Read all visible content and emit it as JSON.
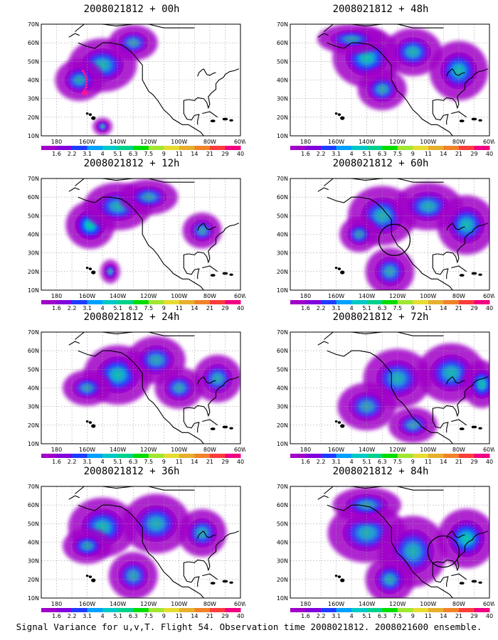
{
  "colorbar": {
    "labels": [
      "1.6",
      "2.2",
      "3.1",
      "4",
      "5.1",
      "6.3",
      "7.5",
      "9",
      "11",
      "14",
      "21",
      "29",
      "40"
    ],
    "colors": [
      "#a000c8",
      "#8200dc",
      "#1e3cff",
      "#00a0ff",
      "#00c8c8",
      "#00d28c",
      "#00dc00",
      "#a0e632",
      "#e6dc32",
      "#e6af2d",
      "#f08228",
      "#fa3c3c",
      "#f00082"
    ]
  },
  "axes": {
    "y_labels": [
      "70N",
      "60N",
      "50N",
      "40N",
      "30N",
      "20N",
      "10N"
    ],
    "x_labels": [
      "180",
      "160W",
      "140W",
      "120W",
      "100W",
      "80W",
      "60W"
    ]
  },
  "panels": [
    {
      "title": "2008021812 + 00h",
      "col": 0,
      "row": 0,
      "blobs": [
        [
          -150,
          48,
          14,
          9,
          0.65
        ],
        [
          -165,
          40,
          10,
          7,
          0.5
        ],
        [
          -130,
          60,
          10,
          6,
          0.3
        ],
        [
          -150,
          15,
          4,
          3,
          0.2
        ]
      ],
      "track": true,
      "circle": null
    },
    {
      "title": "2008021812 + 48h",
      "col": 1,
      "row": 0,
      "blobs": [
        [
          -140,
          52,
          14,
          10,
          0.8
        ],
        [
          -110,
          55,
          12,
          8,
          0.6
        ],
        [
          -80,
          45,
          12,
          10,
          0.75
        ],
        [
          -130,
          35,
          10,
          7,
          0.45
        ],
        [
          -150,
          62,
          14,
          5,
          0.4
        ]
      ],
      "track": false,
      "circle": null
    },
    {
      "title": "2008021812 + 12h",
      "col": 0,
      "row": 1,
      "blobs": [
        [
          -158,
          45,
          10,
          8,
          0.95
        ],
        [
          -140,
          55,
          14,
          8,
          0.55
        ],
        [
          -120,
          60,
          12,
          6,
          0.4
        ],
        [
          -85,
          42,
          8,
          6,
          0.3
        ],
        [
          -145,
          20,
          4,
          4,
          0.2
        ]
      ],
      "track": false,
      "circle": null
    },
    {
      "title": "2008021812 + 60h",
      "col": 1,
      "row": 1,
      "blobs": [
        [
          -130,
          50,
          14,
          10,
          0.6
        ],
        [
          -100,
          55,
          14,
          8,
          0.55
        ],
        [
          -75,
          45,
          12,
          10,
          0.7
        ],
        [
          -125,
          20,
          10,
          8,
          0.45
        ],
        [
          -145,
          40,
          8,
          6,
          0.35
        ]
      ],
      "track": false,
      "circle": [
        -122,
        37
      ]
    },
    {
      "title": "2008021812 + 24h",
      "col": 0,
      "row": 2,
      "blobs": [
        [
          -140,
          47,
          14,
          10,
          0.75
        ],
        [
          -115,
          55,
          12,
          8,
          0.45
        ],
        [
          -100,
          40,
          10,
          7,
          0.4
        ],
        [
          -75,
          45,
          10,
          8,
          0.45
        ],
        [
          -160,
          40,
          10,
          6,
          0.35
        ]
      ],
      "track": false,
      "circle": null
    },
    {
      "title": "2008021812 + 72h",
      "col": 1,
      "row": 2,
      "blobs": [
        [
          -120,
          45,
          14,
          10,
          0.6
        ],
        [
          -85,
          48,
          14,
          10,
          0.65
        ],
        [
          -65,
          42,
          8,
          8,
          0.75
        ],
        [
          -140,
          30,
          12,
          8,
          0.4
        ],
        [
          -110,
          20,
          10,
          6,
          0.35
        ]
      ],
      "track": false,
      "circle": null
    },
    {
      "title": "2008021812 + 36h",
      "col": 0,
      "row": 3,
      "blobs": [
        [
          -150,
          48,
          14,
          10,
          0.7
        ],
        [
          -115,
          50,
          14,
          10,
          0.6
        ],
        [
          -85,
          45,
          10,
          8,
          0.5
        ],
        [
          -160,
          38,
          10,
          6,
          0.45
        ],
        [
          -130,
          22,
          10,
          8,
          0.4
        ]
      ],
      "track": false,
      "circle": null
    },
    {
      "title": "2008021812 + 84h",
      "col": 1,
      "row": 3,
      "blobs": [
        [
          -140,
          45,
          16,
          10,
          0.6
        ],
        [
          -110,
          35,
          14,
          12,
          0.6
        ],
        [
          -75,
          42,
          12,
          10,
          0.85
        ],
        [
          -125,
          20,
          10,
          8,
          0.5
        ],
        [
          -140,
          60,
          14,
          6,
          0.45
        ]
      ],
      "track": false,
      "circle": [
        -90,
        35
      ]
    }
  ],
  "caption": "Signal Variance for u,v,T. Flight 54. Observation time 2008021812. 2008021600 ensemble."
}
